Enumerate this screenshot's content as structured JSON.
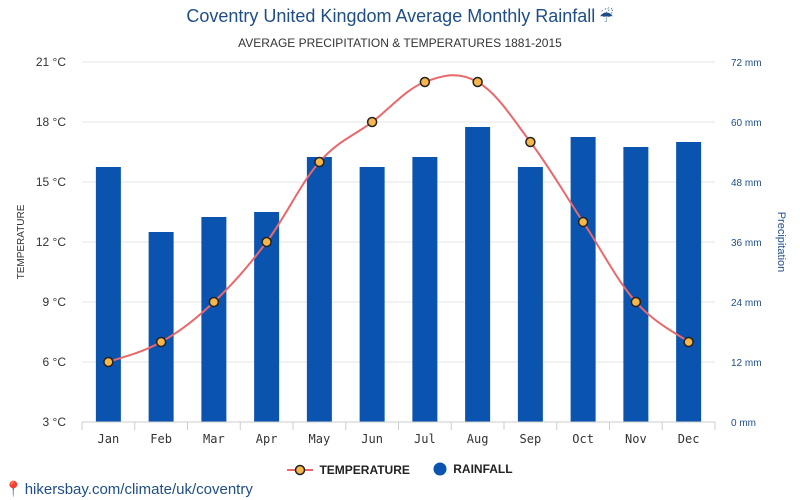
{
  "header": {
    "title": "Coventry United Kingdom Average Monthly Rainfall",
    "title_icon": "umbrella-rain-icon",
    "subtitle": "AVERAGE PRECIPITATION & TEMPERATURES 1881-2015"
  },
  "footer": {
    "source": "hikersbay.com/climate/uk/coventry",
    "icon": "map-pin-icon"
  },
  "legend": {
    "temperature": "TEMPERATURE",
    "rainfall": "RAINFALL"
  },
  "colors": {
    "bar": "#0a54b0",
    "line": "#e8696b",
    "marker_fill": "#f6b64a",
    "marker_stroke": "#222222",
    "title": "#1f4e86",
    "grid": "#e5e5e5"
  },
  "chart_data": {
    "type": "bar",
    "categories": [
      "Jan",
      "Feb",
      "Mar",
      "Apr",
      "May",
      "Jun",
      "Jul",
      "Aug",
      "Sep",
      "Oct",
      "Nov",
      "Dec"
    ],
    "series": [
      {
        "name": "RAINFALL",
        "type": "bar",
        "axis": "right",
        "values": [
          51,
          38,
          41,
          42,
          53,
          51,
          53,
          59,
          51,
          57,
          55,
          56
        ]
      },
      {
        "name": "TEMPERATURE",
        "type": "line",
        "axis": "left",
        "values": [
          6,
          7,
          9,
          12,
          16,
          18,
          20,
          20,
          17,
          13,
          9,
          7
        ]
      }
    ],
    "ylabel_left": "TEMPERATURE",
    "ylabel_right": "Precipitation",
    "ylim_left": [
      3,
      21
    ],
    "yticks_left": [
      "3 °C",
      "6 °C",
      "9 °C",
      "12 °C",
      "15 °C",
      "18 °C",
      "21 °C"
    ],
    "ylim_right": [
      0,
      72
    ],
    "yticks_right": [
      "0 mm",
      "12 mm",
      "24 mm",
      "36 mm",
      "48 mm",
      "60 mm",
      "72 mm"
    ],
    "grid": true,
    "legend_position": "bottom-center"
  }
}
